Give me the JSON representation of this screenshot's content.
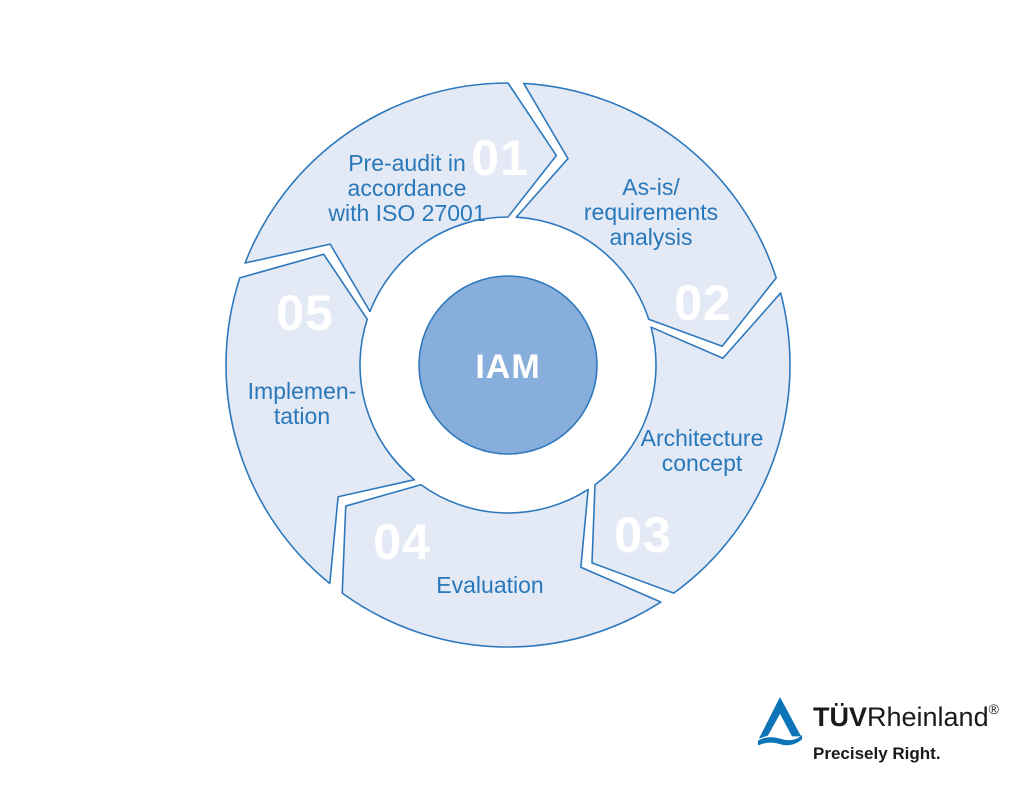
{
  "background": "#ffffff",
  "diagram": {
    "center_label": "IAM",
    "steps": [
      {
        "number": "01",
        "label": "Pre-audit in accordance with ISO 27001",
        "label_lines": [
          "Pre-audit in",
          "accordance",
          "with ISO 27001"
        ]
      },
      {
        "number": "02",
        "label": "As-is/ requirements analysis",
        "label_lines": [
          "As-is/",
          "requirements",
          "analysis"
        ]
      },
      {
        "number": "03",
        "label": "Architecture concept",
        "label_lines": [
          "Architecture",
          "concept"
        ]
      },
      {
        "number": "04",
        "label": "Evaluation",
        "label_lines": [
          "Evaluation"
        ]
      },
      {
        "number": "05",
        "label": "Implementation",
        "label_lines": [
          "Implemen-",
          "tation"
        ]
      }
    ],
    "colors": {
      "segment_fill": "#e4e9f6",
      "segment_stroke": "#2e79bd",
      "label_text": "#2878ba",
      "number_text": "#ffffff",
      "center_fill": "#88afdc",
      "center_stroke": "#2e79bd",
      "center_text": "#ffffff"
    }
  },
  "logo": {
    "brand_bold": "TÜV",
    "brand_regular": "Rheinland",
    "registered_mark": "®",
    "tagline": "Precisely Right.",
    "triangle_color": "#0e74b8",
    "text_color": "#1a1a1a"
  }
}
